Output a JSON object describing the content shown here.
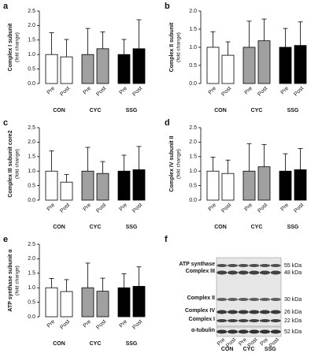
{
  "chart_data": [
    {
      "type": "bar",
      "panel": "a",
      "ylabel": "Complex I subunit",
      "yunit": "(fold change)",
      "categories": [
        "Pre",
        "Post",
        "Pre",
        "Post",
        "Pre",
        "Post"
      ],
      "groups": [
        "CON",
        "CYC",
        "SSG"
      ],
      "values": [
        1.0,
        0.92,
        1.0,
        1.2,
        1.0,
        1.2
      ],
      "errors": [
        0.75,
        0.6,
        0.9,
        0.58,
        0.52,
        1.0
      ],
      "colors": [
        "#ffffff",
        "#ffffff",
        "#a0a0a0",
        "#a0a0a0",
        "#000000",
        "#000000"
      ],
      "ylim": [
        0,
        2.5
      ],
      "yticks": [
        {
          "value": 0,
          "label": "0.0"
        },
        {
          "value": 0.5,
          "label": "0.5"
        },
        {
          "value": 1,
          "label": "1.0"
        },
        {
          "value": 1.5,
          "label": "1.5"
        },
        {
          "value": 2,
          "label": "2.0"
        },
        {
          "value": 2.5,
          "label": "2.5"
        }
      ]
    },
    {
      "type": "bar",
      "panel": "b",
      "ylabel": "Complex II subunit",
      "yunit": "(fold change)",
      "categories": [
        "Pre",
        "Post",
        "Pre",
        "Post",
        "Pre",
        "Post"
      ],
      "groups": [
        "CON",
        "CYC",
        "SSG"
      ],
      "values": [
        1.0,
        0.78,
        1.0,
        1.18,
        1.0,
        1.05
      ],
      "errors": [
        0.43,
        0.37,
        0.72,
        0.6,
        0.52,
        0.65
      ],
      "colors": [
        "#ffffff",
        "#ffffff",
        "#a0a0a0",
        "#a0a0a0",
        "#000000",
        "#000000"
      ],
      "ylim": [
        0,
        2.0
      ],
      "yticks": [
        {
          "value": 0,
          "label": "0.0"
        },
        {
          "value": 0.5,
          "label": "0.5"
        },
        {
          "value": 1,
          "label": "1.0"
        },
        {
          "value": 1.5,
          "label": "1.5"
        },
        {
          "value": 2,
          "label": "2.0"
        }
      ]
    },
    {
      "type": "bar",
      "panel": "c",
      "ylabel": "Complex III subunit core2",
      "yunit": "(fold change)",
      "categories": [
        "Pre",
        "Post",
        "Pre",
        "Post",
        "Pre",
        "Post"
      ],
      "groups": [
        "CON",
        "CYC",
        "SSG"
      ],
      "values": [
        1.0,
        0.62,
        1.0,
        0.92,
        1.0,
        1.05
      ],
      "errors": [
        0.7,
        0.26,
        0.82,
        0.41,
        0.55,
        0.8
      ],
      "colors": [
        "#ffffff",
        "#ffffff",
        "#a0a0a0",
        "#a0a0a0",
        "#000000",
        "#000000"
      ],
      "ylim": [
        0,
        2.5
      ],
      "yticks": [
        {
          "value": 0,
          "label": "0.0"
        },
        {
          "value": 0.5,
          "label": "0.5"
        },
        {
          "value": 1,
          "label": "1.0"
        },
        {
          "value": 1.5,
          "label": "1.5"
        },
        {
          "value": 2,
          "label": "2.0"
        },
        {
          "value": 2.5,
          "label": "2.5"
        }
      ]
    },
    {
      "type": "bar",
      "panel": "d",
      "ylabel": "Complex IV subunit II",
      "yunit": "(fold change)",
      "categories": [
        "Pre",
        "Post",
        "Pre",
        "Post",
        "Pre",
        "Post"
      ],
      "groups": [
        "CON",
        "CYC",
        "SSG"
      ],
      "values": [
        1.0,
        0.92,
        1.0,
        1.15,
        1.0,
        1.05
      ],
      "errors": [
        0.48,
        0.46,
        0.95,
        0.77,
        0.6,
        0.73
      ],
      "colors": [
        "#ffffff",
        "#ffffff",
        "#a0a0a0",
        "#a0a0a0",
        "#000000",
        "#000000"
      ],
      "ylim": [
        0,
        2.5
      ],
      "yticks": [
        {
          "value": 0,
          "label": "0.0"
        },
        {
          "value": 0.5,
          "label": "0.5"
        },
        {
          "value": 1,
          "label": "1.0"
        },
        {
          "value": 1.5,
          "label": "1.5"
        },
        {
          "value": 2,
          "label": "2.0"
        },
        {
          "value": 2.5,
          "label": "2.5"
        }
      ]
    },
    {
      "type": "bar",
      "panel": "e",
      "ylabel": "ATP synthase subunit α",
      "yunit": "(fold change)",
      "categories": [
        "Pre",
        "Post",
        "Pre",
        "Post",
        "Pre",
        "Post"
      ],
      "groups": [
        "CON",
        "CYC",
        "SSG"
      ],
      "values": [
        1.0,
        0.87,
        1.0,
        0.88,
        1.0,
        1.05
      ],
      "errors": [
        0.32,
        0.41,
        0.85,
        0.45,
        0.48,
        0.67
      ],
      "colors": [
        "#ffffff",
        "#ffffff",
        "#a0a0a0",
        "#a0a0a0",
        "#000000",
        "#000000"
      ],
      "ylim": [
        0,
        2.5
      ],
      "yticks": [
        {
          "value": 0,
          "label": "0.0"
        },
        {
          "value": 0.5,
          "label": "0.5"
        },
        {
          "value": 1,
          "label": "1.0"
        },
        {
          "value": 1.5,
          "label": "1.5"
        },
        {
          "value": 2,
          "label": "2.0"
        },
        {
          "value": 2.5,
          "label": "2.5"
        }
      ]
    }
  ],
  "blot": {
    "panel": "f",
    "bands": [
      {
        "label": "ATP synthase",
        "kda": "55 kDa"
      },
      {
        "label": "Complex III",
        "kda": "48 kDa"
      },
      {
        "label": "Complex II",
        "kda": "30 kDa"
      },
      {
        "label": "Complex IV",
        "kda": "26 kDa"
      },
      {
        "label": "Complex I",
        "kda": "22 kDa"
      },
      {
        "label": "α-tubulin",
        "kda": "52 kDa"
      }
    ],
    "lanes": [
      "Pre",
      "Post",
      "Pre",
      "Post",
      "Pre",
      "Post"
    ],
    "groups": [
      "CON",
      "CYC",
      "SSG"
    ]
  }
}
